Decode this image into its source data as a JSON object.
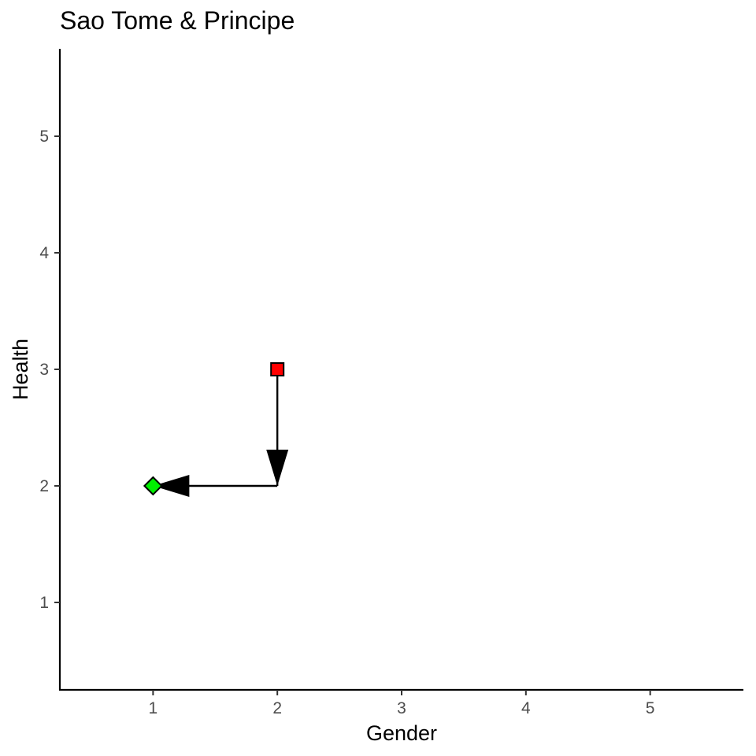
{
  "chart_data": {
    "type": "scatter",
    "title": "Sao Tome & Principe",
    "xlabel": "Gender",
    "ylabel": "Health",
    "xlim": [
      0.25,
      5.75
    ],
    "ylim": [
      0.25,
      5.75
    ],
    "x_ticks": [
      "1",
      "2",
      "3",
      "4",
      "5"
    ],
    "y_ticks": [
      "1",
      "2",
      "3",
      "4",
      "5"
    ],
    "grid": false,
    "points": [
      {
        "x": 2,
        "y": 3,
        "shape": "square",
        "color": "#ff0000"
      },
      {
        "x": 1,
        "y": 2,
        "shape": "diamond",
        "color": "#00ee00"
      }
    ],
    "path": [
      {
        "from": [
          2,
          3
        ],
        "to": [
          2,
          2
        ]
      },
      {
        "from": [
          2,
          2
        ],
        "to": [
          1,
          2
        ]
      }
    ]
  }
}
